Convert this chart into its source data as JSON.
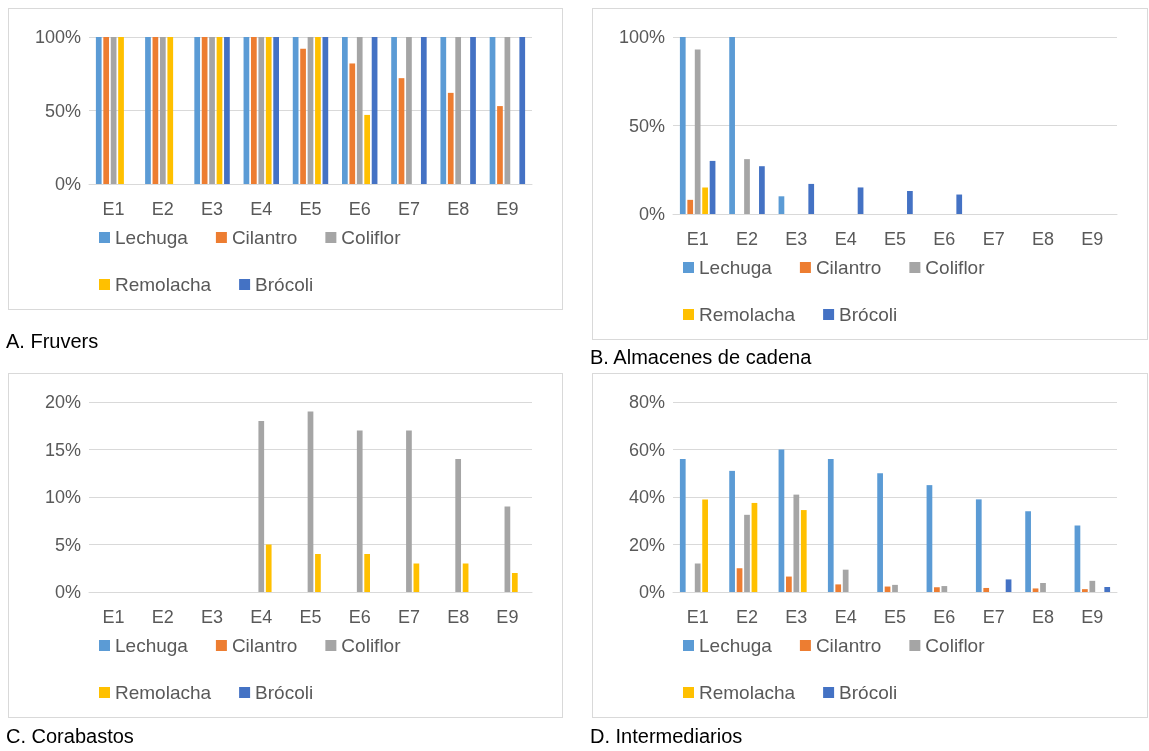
{
  "chart_data": [
    {
      "type": "bar",
      "title": "A. Fruvers",
      "categories": [
        "E1",
        "E2",
        "E3",
        "E4",
        "E5",
        "E6",
        "E7",
        "E8",
        "E9"
      ],
      "ylim": [
        0,
        100
      ],
      "yticks": [
        {
          "value": 0,
          "label": "0%"
        },
        {
          "value": 50,
          "label": "50%"
        },
        {
          "value": 100,
          "label": "100%"
        }
      ],
      "grid": "y",
      "legend": "bottom",
      "series": [
        {
          "name": "Lechuga",
          "color": "#5b9bd5",
          "values": [
            100,
            100,
            100,
            100,
            100,
            100,
            100,
            100,
            100
          ]
        },
        {
          "name": "Cilantro",
          "color": "#ed7d31",
          "values": [
            100,
            100,
            100,
            100,
            92,
            82,
            72,
            62,
            53
          ]
        },
        {
          "name": "Coliflor",
          "color": "#a5a5a5",
          "values": [
            100,
            100,
            100,
            100,
            100,
            100,
            100,
            100,
            100
          ]
        },
        {
          "name": "Remolacha",
          "color": "#ffc000",
          "values": [
            100,
            100,
            100,
            100,
            100,
            47,
            0,
            0,
            0
          ]
        },
        {
          "name": "Brócoli",
          "color": "#4472c4",
          "values": [
            0,
            0,
            100,
            100,
            100,
            100,
            100,
            100,
            100
          ]
        }
      ]
    },
    {
      "type": "bar",
      "title": "B. Almacenes de cadena",
      "categories": [
        "E1",
        "E2",
        "E3",
        "E4",
        "E5",
        "E6",
        "E7",
        "E8",
        "E9"
      ],
      "ylim": [
        0,
        100
      ],
      "yticks": [
        {
          "value": 0,
          "label": "0%"
        },
        {
          "value": 50,
          "label": "50%"
        },
        {
          "value": 100,
          "label": "100%"
        }
      ],
      "grid": "y",
      "legend": "bottom",
      "series": [
        {
          "name": "Lechuga",
          "color": "#5b9bd5",
          "values": [
            100,
            100,
            10,
            0,
            0,
            0,
            0,
            0,
            0
          ]
        },
        {
          "name": "Cilantro",
          "color": "#ed7d31",
          "values": [
            8,
            0,
            0,
            0,
            0,
            0,
            0,
            0,
            0
          ]
        },
        {
          "name": "Coliflor",
          "color": "#a5a5a5",
          "values": [
            93,
            31,
            0,
            0,
            0,
            0,
            0,
            0,
            0
          ]
        },
        {
          "name": "Remolacha",
          "color": "#ffc000",
          "values": [
            15,
            0,
            0,
            0,
            0,
            0,
            0,
            0,
            0
          ]
        },
        {
          "name": "Brócoli",
          "color": "#4472c4",
          "values": [
            30,
            27,
            17,
            15,
            13,
            11,
            0,
            0,
            0
          ]
        }
      ]
    },
    {
      "type": "bar",
      "title": "C. Corabastos",
      "categories": [
        "E1",
        "E2",
        "E3",
        "E4",
        "E5",
        "E6",
        "E7",
        "E8",
        "E9"
      ],
      "ylim": [
        0,
        20
      ],
      "yticks": [
        {
          "value": 0,
          "label": "0%"
        },
        {
          "value": 5,
          "label": "5%"
        },
        {
          "value": 10,
          "label": "10%"
        },
        {
          "value": 15,
          "label": "15%"
        },
        {
          "value": 20,
          "label": "20%"
        }
      ],
      "grid": "y",
      "legend": "bottom",
      "series": [
        {
          "name": "Lechuga",
          "color": "#5b9bd5",
          "values": [
            0,
            0,
            0,
            0,
            0,
            0,
            0,
            0,
            0
          ]
        },
        {
          "name": "Cilantro",
          "color": "#ed7d31",
          "values": [
            0,
            0,
            0,
            0,
            0,
            0,
            0,
            0,
            0
          ]
        },
        {
          "name": "Coliflor",
          "color": "#a5a5a5",
          "values": [
            0,
            0,
            0,
            18,
            19,
            17,
            17,
            14,
            9
          ]
        },
        {
          "name": "Remolacha",
          "color": "#ffc000",
          "values": [
            0,
            0,
            0,
            5,
            4,
            4,
            3,
            3,
            2
          ]
        },
        {
          "name": "Brócoli",
          "color": "#4472c4",
          "values": [
            0,
            0,
            0,
            0,
            0,
            0,
            0,
            0,
            0
          ]
        }
      ]
    },
    {
      "type": "bar",
      "title": "D. Intermediarios",
      "categories": [
        "E1",
        "E2",
        "E3",
        "E4",
        "E5",
        "E6",
        "E7",
        "E8",
        "E9"
      ],
      "ylim": [
        0,
        80
      ],
      "yticks": [
        {
          "value": 0,
          "label": "0%"
        },
        {
          "value": 20,
          "label": "20%"
        },
        {
          "value": 40,
          "label": "40%"
        },
        {
          "value": 60,
          "label": "60%"
        },
        {
          "value": 80,
          "label": "80%"
        }
      ],
      "grid": "y",
      "legend": "bottom",
      "series": [
        {
          "name": "Lechuga",
          "color": "#5b9bd5",
          "values": [
            56,
            51,
            60,
            56,
            50,
            45,
            39,
            34,
            28
          ]
        },
        {
          "name": "Cilantro",
          "color": "#ed7d31",
          "values": [
            0,
            10,
            6.5,
            3.2,
            2.3,
            2,
            1.7,
            1.5,
            1.2
          ]
        },
        {
          "name": "Coliflor",
          "color": "#a5a5a5",
          "values": [
            12,
            32.5,
            41,
            9.4,
            3,
            2.5,
            0,
            3.8,
            4.7
          ]
        },
        {
          "name": "Remolacha",
          "color": "#ffc000",
          "values": [
            39,
            37.5,
            34.5,
            0,
            0,
            0,
            0,
            0,
            0
          ]
        },
        {
          "name": "Brócoli",
          "color": "#4472c4",
          "values": [
            0,
            0,
            0,
            0,
            0,
            0,
            5.3,
            0,
            2.1
          ]
        }
      ]
    }
  ]
}
